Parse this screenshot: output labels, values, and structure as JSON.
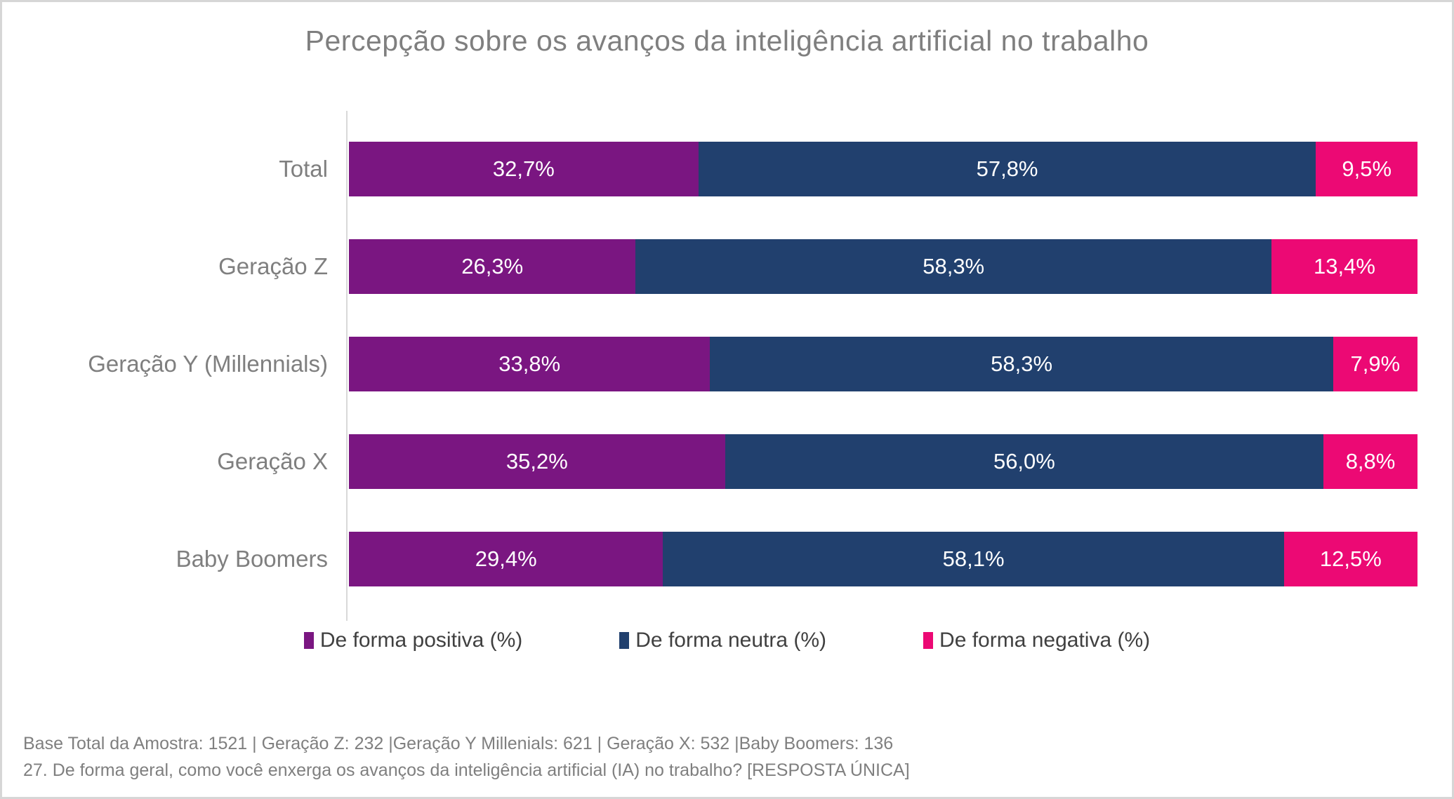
{
  "page": {
    "background": "#ffffff",
    "border_color": "#d6d6d6"
  },
  "chart_data": {
    "type": "bar",
    "variant": "horizontal-100pct-stacked",
    "title": "Percepção sobre os avanços da inteligência artificial no trabalho",
    "categories": [
      "Total",
      "Geração Z",
      "Geração Y (Millennials)",
      "Geração X",
      "Baby Boomers"
    ],
    "series": [
      {
        "name": "De forma positiva (%)",
        "color": "#7a1681",
        "values": [
          32.7,
          26.3,
          33.8,
          35.2,
          29.4
        ]
      },
      {
        "name": "De forma neutra (%)",
        "color": "#21406e",
        "values": [
          57.8,
          58.3,
          58.3,
          56.0,
          58.1
        ]
      },
      {
        "name": "De forma negativa (%)",
        "color": "#ec0974",
        "values": [
          9.5,
          13.4,
          7.9,
          8.8,
          12.5
        ]
      }
    ],
    "rows": [
      {
        "category": "Total",
        "values": [
          32.7,
          57.8,
          9.5
        ],
        "labels": [
          "32,7%",
          "57,8%",
          "9,5%"
        ]
      },
      {
        "category": "Geração Z",
        "values": [
          26.3,
          58.3,
          13.4
        ],
        "labels": [
          "26,3%",
          "58,3%",
          "13,4%"
        ]
      },
      {
        "category": "Geração Y (Millennials)",
        "values": [
          33.8,
          58.3,
          7.9
        ],
        "labels": [
          "33,8%",
          "58,3%",
          "7,9%"
        ]
      },
      {
        "category": "Geração X",
        "values": [
          35.2,
          56.0,
          8.8
        ],
        "labels": [
          "35,2%",
          "56,0%",
          "8,8%"
        ]
      },
      {
        "category": "Baby Boomers",
        "values": [
          29.4,
          58.1,
          12.5
        ],
        "labels": [
          "29,4%",
          "58,1%",
          "12,5%"
        ]
      }
    ],
    "value_labels_inside_bars": true,
    "xlim": [
      0,
      100
    ],
    "grid": false,
    "legend_position": "bottom"
  },
  "legend": {
    "items": [
      {
        "label": "De forma positiva (%)",
        "color": "#7a1681"
      },
      {
        "label": "De forma neutra (%)",
        "color": "#21406e"
      },
      {
        "label": "De forma negativa (%)",
        "color": "#ec0974"
      }
    ]
  },
  "footer": {
    "line1": "Base Total da Amostra: 1521 | Geração Z: 232 |Geração Y Millenials: 621 | Geração X: 532 |Baby Boomers: 136",
    "line2": "27. De forma geral, como você enxerga os avanços da inteligência artificial (IA) no trabalho? [RESPOSTA ÚNICA]"
  }
}
